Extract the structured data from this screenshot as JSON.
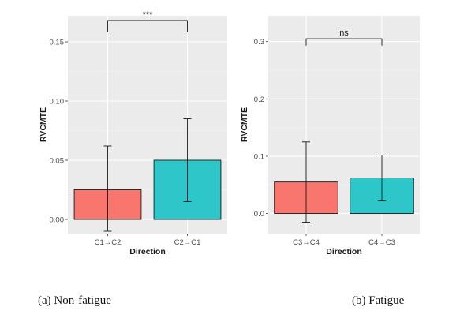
{
  "chart_data": [
    {
      "type": "bar",
      "xlabel": "Direction",
      "ylabel": "RVCMTE",
      "categories": [
        "C1→C2",
        "C2→C1"
      ],
      "values": [
        0.025,
        0.05
      ],
      "error_low": [
        -0.01,
        0.015
      ],
      "error_high": [
        0.062,
        0.085
      ],
      "colors": [
        "#F8766D",
        "#2EC7C9"
      ],
      "ylim": [
        -0.012,
        0.172
      ],
      "yticks": [
        0.0,
        0.05,
        0.1,
        0.15
      ],
      "ytick_labels": [
        "0.00",
        "0.05",
        "0.10",
        "0.15"
      ],
      "significance": {
        "label": "***",
        "bracket_y": 0.168,
        "drop_to": 0.158
      },
      "grid": true,
      "background": "#EBEBEB",
      "caption": "(a) Non-fatigue"
    },
    {
      "type": "bar",
      "xlabel": "Direction",
      "ylabel": "RVCMTE",
      "categories": [
        "C3→C4",
        "C4→C3"
      ],
      "values": [
        0.055,
        0.062
      ],
      "error_low": [
        -0.015,
        0.022
      ],
      "error_high": [
        0.125,
        0.102
      ],
      "colors": [
        "#F8766D",
        "#2EC7C9"
      ],
      "ylim": [
        -0.035,
        0.345
      ],
      "yticks": [
        0.0,
        0.1,
        0.2,
        0.3
      ],
      "ytick_labels": [
        "0.0",
        "0.1",
        "0.2",
        "0.3"
      ],
      "significance": {
        "label": "ns",
        "bracket_y": 0.305,
        "drop_to": 0.293
      },
      "grid": true,
      "background": "#EBEBEB",
      "caption": "(b) Fatigue"
    }
  ]
}
